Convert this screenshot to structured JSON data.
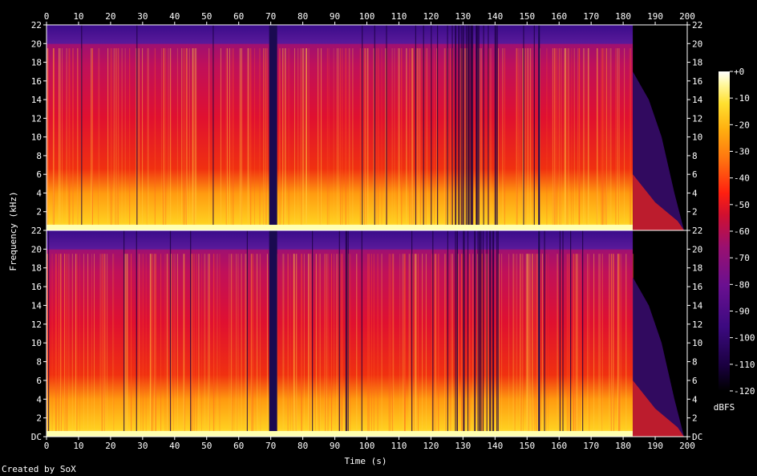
{
  "credit": "Created by SoX",
  "chart_data": {
    "type": "heatmap",
    "title": "",
    "xlabel": "Time (s)",
    "ylabel": "Frequency (kHz)",
    "xlim": [
      0,
      200
    ],
    "ylim_khz": [
      0,
      22
    ],
    "x_ticks": [
      0,
      10,
      20,
      30,
      40,
      50,
      60,
      70,
      80,
      90,
      100,
      110,
      120,
      130,
      140,
      150,
      160,
      170,
      180,
      190,
      200
    ],
    "y_ticks": [
      {
        "value": 0,
        "label": "DC"
      },
      {
        "value": 2,
        "label": "2"
      },
      {
        "value": 4,
        "label": "4"
      },
      {
        "value": 6,
        "label": "6"
      },
      {
        "value": 8,
        "label": "8"
      },
      {
        "value": 10,
        "label": "10"
      },
      {
        "value": 12,
        "label": "12"
      },
      {
        "value": 14,
        "label": "14"
      },
      {
        "value": 16,
        "label": "16"
      },
      {
        "value": 18,
        "label": "18"
      },
      {
        "value": 20,
        "label": "20"
      },
      {
        "value": 22,
        "label": "22"
      }
    ],
    "channels": 2,
    "audio_end_s": 183,
    "lowpass_cutoff_khz": 20,
    "gaps_s": [
      [
        69.5,
        72
      ],
      [
        153.5,
        154
      ]
    ],
    "colorbar": {
      "label": "dBFS",
      "range_db": [
        -120,
        0
      ],
      "ticks": [
        {
          "value": 0,
          "label": "+0"
        },
        {
          "value": -10,
          "label": "-10"
        },
        {
          "value": -20,
          "label": "-20"
        },
        {
          "value": -30,
          "label": "-30"
        },
        {
          "value": -40,
          "label": "-40"
        },
        {
          "value": -50,
          "label": "-50"
        },
        {
          "value": -60,
          "label": "-60"
        },
        {
          "value": -70,
          "label": "-70"
        },
        {
          "value": -80,
          "label": "-80"
        },
        {
          "value": -90,
          "label": "-90"
        },
        {
          "value": -100,
          "label": "-100"
        },
        {
          "value": -110,
          "label": "-110"
        },
        {
          "value": -120,
          "label": "-120"
        }
      ],
      "colors": [
        "#000000",
        "#1a0040",
        "#3c0a80",
        "#6a1090",
        "#9a1070",
        "#c01040",
        "#e01020",
        "#ff3010",
        "#ff7010",
        "#ffb010",
        "#ffe030",
        "#fff8a0",
        "#ffffff"
      ]
    }
  }
}
